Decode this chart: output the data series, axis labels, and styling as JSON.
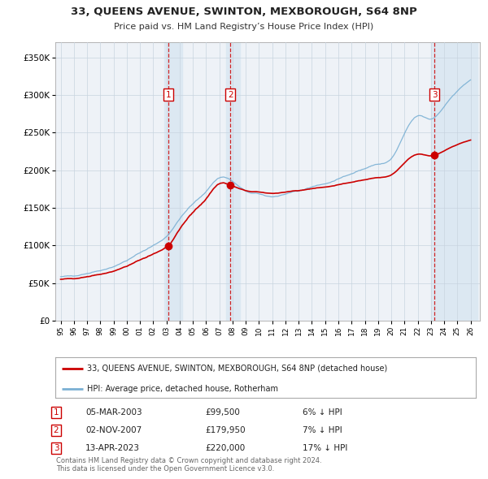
{
  "title": "33, QUEENS AVENUE, SWINTON, MEXBOROUGH, S64 8NP",
  "subtitle": "Price paid vs. HM Land Registry’s House Price Index (HPI)",
  "ylim": [
    0,
    370000
  ],
  "yticks": [
    0,
    50000,
    100000,
    150000,
    200000,
    250000,
    300000,
    350000
  ],
  "ytick_labels": [
    "£0",
    "£50K",
    "£100K",
    "£150K",
    "£200K",
    "£250K",
    "£300K",
    "£350K"
  ],
  "sale_points": [
    {
      "year": 2003.17,
      "price": 99500,
      "label": "1"
    },
    {
      "year": 2007.83,
      "price": 179950,
      "label": "2"
    },
    {
      "year": 2023.28,
      "price": 220000,
      "label": "3"
    }
  ],
  "sale_color": "#cc0000",
  "hpi_color": "#7ab0d4",
  "legend_sale": "33, QUEENS AVENUE, SWINTON, MEXBOROUGH, S64 8NP (detached house)",
  "legend_hpi": "HPI: Average price, detached house, Rotherham",
  "table_rows": [
    {
      "num": "1",
      "date": "05-MAR-2003",
      "price": "£99,500",
      "hpi": "6% ↓ HPI"
    },
    {
      "num": "2",
      "date": "02-NOV-2007",
      "price": "£179,950",
      "hpi": "7% ↓ HPI"
    },
    {
      "num": "3",
      "date": "13-APR-2023",
      "price": "£220,000",
      "hpi": "17% ↓ HPI"
    }
  ],
  "footer": "Contains HM Land Registry data © Crown copyright and database right 2024.\nThis data is licensed under the Open Government Licence v3.0.",
  "background_color": "#ffffff",
  "plot_bg_color": "#eef2f7",
  "shade_color": "#dce8f2",
  "grid_color": "#c8d4e0"
}
